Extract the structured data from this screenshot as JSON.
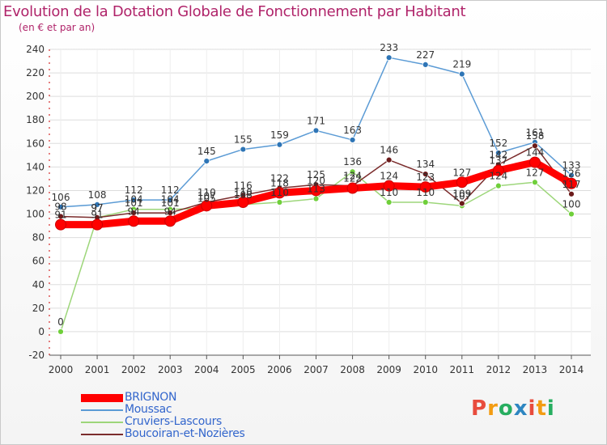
{
  "header": {
    "title": "Evolution de la Dotation Globale de Fonctionnement par Habitant",
    "subtitle": "(en € et par an)"
  },
  "logo": {
    "text": "Proxiti",
    "colors": [
      "#e84c3d",
      "#f39c12",
      "#27ae60",
      "#2e86c1"
    ]
  },
  "chart_data": {
    "type": "line",
    "title": "Evolution de la Dotation Globale de Fonctionnement par Habitant",
    "subtitle": "(en € et par an)",
    "xlabel": "",
    "ylabel": "",
    "ylim": [
      -20,
      240
    ],
    "yticks": [
      -20,
      0,
      20,
      40,
      60,
      80,
      100,
      120,
      140,
      160,
      180,
      200,
      220,
      240
    ],
    "grid": true,
    "legend_position": "bottom-left",
    "x": [
      "2000",
      "2001",
      "2002",
      "2003",
      "2004",
      "2005",
      "2006",
      "2007",
      "2008",
      "2009",
      "2010",
      "2011",
      "2012",
      "2013",
      "2014"
    ],
    "series": [
      {
        "name": "Moussac",
        "color": "#5b9bd5",
        "marker_color": "#2e75b6",
        "values": [
          106,
          108,
          112,
          112,
          145,
          155,
          159,
          171,
          163,
          233,
          227,
          219,
          152,
          161,
          133
        ]
      },
      {
        "name": "Cruviers-Lascours",
        "color": "#9dd67a",
        "marker_color": "#6fcf3a",
        "values": [
          0,
          97,
          104,
          104,
          105,
          108,
          110,
          113,
          136,
          110,
          110,
          107,
          124,
          127,
          100
        ]
      },
      {
        "name": "Boucoiran-et-Nozières",
        "color": "#7b2c2c",
        "marker_color": "#6b1a1a",
        "values": [
          98,
          97,
          101,
          101,
          110,
          116,
          122,
          125,
          124,
          146,
          134,
          109,
          142,
          158,
          117
        ]
      },
      {
        "name": "BRIGNON",
        "color": "#ff0000",
        "marker_color": "#ff0000",
        "values": [
          91,
          91,
          94,
          94,
          107,
          110,
          118,
          120,
          122,
          124,
          123,
          127,
          137,
          144,
          126
        ]
      }
    ],
    "labels": {
      "Moussac": [
        "106",
        "108",
        "112",
        "112",
        "145",
        "155",
        "159",
        "171",
        "163",
        "233",
        "227",
        "219",
        "152",
        "161",
        "133"
      ],
      "Cruviers-Lascours": [
        "0",
        "97",
        "104",
        "104",
        "105",
        "108",
        "110",
        "113",
        "136",
        "110",
        "110",
        "107",
        "124",
        "127",
        "100"
      ],
      "Boucoiran-et-Nozières": [
        "98",
        "97",
        "101",
        "101",
        "110",
        "116",
        "122",
        "125",
        "124",
        "146",
        "134",
        "109",
        "142",
        "158",
        "117"
      ],
      "BRIGNON": [
        "91",
        "91",
        "94",
        "94",
        "107",
        "110",
        "118",
        "120",
        "122",
        "124",
        "123",
        "127",
        "137",
        "144",
        "126"
      ]
    }
  },
  "legend": [
    {
      "name": "BRIGNON",
      "color": "#ff0000",
      "text_color": "#3366cc"
    },
    {
      "name": "Moussac",
      "color": "#5b9bd5",
      "text_color": "#3366cc"
    },
    {
      "name": "Cruviers-Lascours",
      "color": "#9dd67a",
      "text_color": "#3366cc"
    },
    {
      "name": "Boucoiran-et-Nozières",
      "color": "#7b2c2c",
      "text_color": "#3366cc"
    }
  ]
}
